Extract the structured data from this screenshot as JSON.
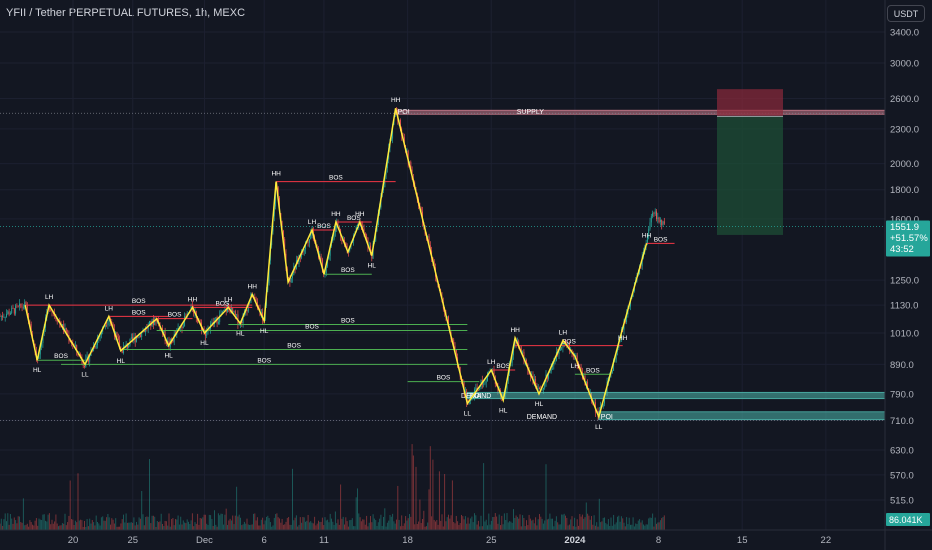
{
  "header": {
    "title": "YFII / Tether PERPETUAL FUTURES, 1h, MEXC",
    "currency": "USDT"
  },
  "chart_data": {
    "type": "candlestick",
    "price_axis": {
      "ticks": [
        "3400.0",
        "3000.0",
        "2600.0",
        "2300.0",
        "2000.0",
        "1800.0",
        "1600.0",
        "1250.0",
        "1130.0",
        "1010.0",
        "890.0",
        "790.0",
        "710.0",
        "630.0",
        "570.0",
        "515.0"
      ]
    },
    "time_axis": {
      "ticks": [
        {
          "label": "20",
          "bold": false
        },
        {
          "label": "25",
          "bold": false
        },
        {
          "label": "Dec",
          "bold": false
        },
        {
          "label": "6",
          "bold": false
        },
        {
          "label": "11",
          "bold": false
        },
        {
          "label": "18",
          "bold": false
        },
        {
          "label": "25",
          "bold": false
        },
        {
          "label": "2024",
          "bold": true
        },
        {
          "label": "8",
          "bold": false
        },
        {
          "label": "15",
          "bold": false
        },
        {
          "label": "22",
          "bold": false
        }
      ]
    },
    "last_price": {
      "price": "1551.9",
      "change": "+51.57%",
      "countdown": "43:52"
    },
    "volume_label": "86.041K",
    "zigzag": [
      {
        "x": "Nov 16",
        "price": 1130,
        "label": ""
      },
      {
        "x": "Nov 17",
        "price": 905,
        "label": "HL"
      },
      {
        "x": "Nov 18",
        "price": 1130,
        "label": "LH"
      },
      {
        "x": "Nov 21",
        "price": 890,
        "label": "LL"
      },
      {
        "x": "Nov 23",
        "price": 1080,
        "label": "LH"
      },
      {
        "x": "Nov 24",
        "price": 940,
        "label": "HL"
      },
      {
        "x": "Nov 27",
        "price": 1070,
        "label": ""
      },
      {
        "x": "Nov 28",
        "price": 960,
        "label": "HL"
      },
      {
        "x": "Nov 30",
        "price": 1120,
        "label": "HH"
      },
      {
        "x": "Dec 1",
        "price": 1010,
        "label": "HL"
      },
      {
        "x": "Dec 3",
        "price": 1120,
        "label": "LH"
      },
      {
        "x": "Dec 4",
        "price": 1050,
        "label": "HL"
      },
      {
        "x": "Dec 5",
        "price": 1180,
        "label": "HH"
      },
      {
        "x": "Dec 6",
        "price": 1060,
        "label": "HL"
      },
      {
        "x": "Dec 7",
        "price": 1860,
        "label": "HH"
      },
      {
        "x": "Dec 8",
        "price": 1240,
        "label": ""
      },
      {
        "x": "Dec 10",
        "price": 1530,
        "label": "LH"
      },
      {
        "x": "Dec 11",
        "price": 1280,
        "label": ""
      },
      {
        "x": "Dec 12",
        "price": 1580,
        "label": "HH"
      },
      {
        "x": "Dec 13",
        "price": 1400,
        "label": ""
      },
      {
        "x": "Dec 14",
        "price": 1580,
        "label": "HH"
      },
      {
        "x": "Dec 15",
        "price": 1380,
        "label": "HL"
      },
      {
        "x": "Dec 17",
        "price": 2500,
        "label": "HH"
      },
      {
        "x": "Dec 23",
        "price": 760,
        "label": "LL"
      },
      {
        "x": "Dec 25",
        "price": 870,
        "label": "LH"
      },
      {
        "x": "Dec 26",
        "price": 770,
        "label": "HL"
      },
      {
        "x": "Dec 27",
        "price": 990,
        "label": "HH"
      },
      {
        "x": "Dec 29",
        "price": 790,
        "label": "HL"
      },
      {
        "x": "Dec 31",
        "price": 980,
        "label": "LH"
      },
      {
        "x": "Jan 1",
        "price": 920,
        "label": "LH"
      },
      {
        "x": "Jan 3",
        "price": 720,
        "label": "LL"
      },
      {
        "x": "Jan 5",
        "price": 1030,
        "label": "HH"
      },
      {
        "x": "Jan 7",
        "price": 1450,
        "label": "HH"
      }
    ],
    "structure_lines": [
      {
        "label": "BOS",
        "kind": "bearish",
        "price": 1130
      },
      {
        "label": "BOS",
        "kind": "bullish",
        "price": 905
      },
      {
        "label": "BOS",
        "kind": "bullish",
        "price": 890
      },
      {
        "label": "BOS",
        "kind": "bearish",
        "price": 1080
      },
      {
        "label": "BOS",
        "kind": "bearish",
        "price": 1070
      },
      {
        "label": "BOS",
        "kind": "bearish",
        "price": 1120
      },
      {
        "label": "BOS",
        "kind": "bullish",
        "price": 1045
      },
      {
        "label": "BOS",
        "kind": "bullish",
        "price": 1020
      },
      {
        "label": "BOS",
        "kind": "bullish",
        "price": 945
      },
      {
        "label": "BOS",
        "kind": "bearish",
        "price": 1860
      },
      {
        "label": "BOS",
        "kind": "bearish",
        "price": 1530
      },
      {
        "label": "BOS",
        "kind": "bearish",
        "price": 1580
      },
      {
        "label": "BOS",
        "kind": "bullish",
        "price": 1280
      },
      {
        "label": "BOS",
        "kind": "bullish",
        "price": 830
      },
      {
        "label": "BOS",
        "kind": "bearish",
        "price": 870
      },
      {
        "label": "BOS",
        "kind": "bearish",
        "price": 960
      },
      {
        "label": "BOS",
        "kind": "bullish",
        "price": 855
      },
      {
        "label": "BOS",
        "kind": "bearish",
        "price": 1450
      }
    ],
    "zones": [
      {
        "name": "SUPPLY",
        "tag": "POI",
        "type": "supply",
        "price_top": 2480,
        "price_bottom": 2440
      },
      {
        "name": "DEMAND",
        "tag": "POI",
        "type": "demand",
        "price_top": 795,
        "price_bottom": 775
      },
      {
        "name": "DEMAND",
        "tag": "POI",
        "type": "demand",
        "price_top": 735,
        "price_bottom": 712
      }
    ],
    "position": {
      "entry": 2420,
      "stop": 2700,
      "target": 1500
    },
    "colors": {
      "background": "#131722",
      "up": "#26a69a",
      "down": "#ef5350",
      "zigzag": "#ffeb3b",
      "bos_bearish": "#f23645",
      "bos_bullish": "#4caf50",
      "supply": "#c97a8a",
      "demand": "#4db6ac"
    }
  }
}
